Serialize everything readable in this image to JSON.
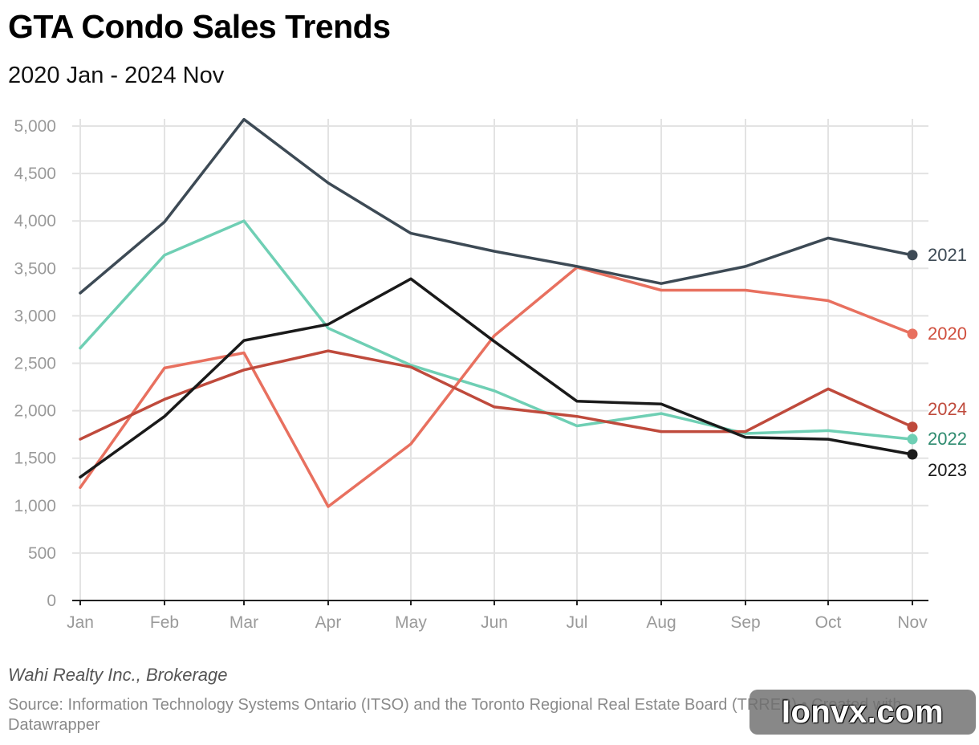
{
  "title": "GTA Condo Sales Trends",
  "subtitle": "2020 Jan - 2024 Nov",
  "byline": "Wahi Realty Inc., Brokerage",
  "source": "Source: Information Technology Systems Ontario (ITSO) and the Toronto Regional Real Estate Board (TRREB) • Created with Datawrapper",
  "watermark": "Ionvx.com",
  "chart_data": {
    "type": "line",
    "categories": [
      "Jan",
      "Feb",
      "Mar",
      "Apr",
      "May",
      "Jun",
      "Jul",
      "Aug",
      "Sep",
      "Oct",
      "Nov"
    ],
    "ylim": [
      0,
      5000
    ],
    "yticks": [
      0,
      500,
      1000,
      1500,
      2000,
      2500,
      3000,
      3500,
      4000,
      4500,
      5000
    ],
    "ytick_labels": [
      "0",
      "500",
      "1,000",
      "1,500",
      "2,000",
      "2,500",
      "3,000",
      "3,500",
      "4,000",
      "4,500",
      "5,000"
    ],
    "grid": true,
    "legend": "end-of-line labels",
    "series": [
      {
        "name": "2022",
        "color": "#6fcfb4",
        "label_color": "#2e8b6f",
        "values": [
          2660,
          3640,
          4000,
          2870,
          2480,
          2210,
          1840,
          1970,
          1760,
          1790,
          1700
        ]
      },
      {
        "name": "2020",
        "color": "#e8705f",
        "label_color": "#d0503f",
        "values": [
          1190,
          2450,
          2610,
          990,
          1650,
          2790,
          3510,
          3270,
          3270,
          3160,
          2810
        ]
      },
      {
        "name": "2024",
        "color": "#bf4a3c",
        "label_color": "#bf4a3c",
        "values": [
          1700,
          2120,
          2430,
          2630,
          2460,
          2040,
          1940,
          1780,
          1780,
          2230,
          1830
        ]
      },
      {
        "name": "2023",
        "color": "#1a1a1a",
        "label_color": "#1a1a1a",
        "values": [
          1300,
          1940,
          2740,
          2910,
          3390,
          2730,
          2100,
          2070,
          1720,
          1700,
          1540
        ]
      },
      {
        "name": "2021",
        "color": "#3d4a55",
        "label_color": "#3d4a55",
        "values": [
          3240,
          3990,
          5070,
          4400,
          3870,
          3680,
          3520,
          3340,
          3520,
          3820,
          3640
        ]
      }
    ]
  }
}
